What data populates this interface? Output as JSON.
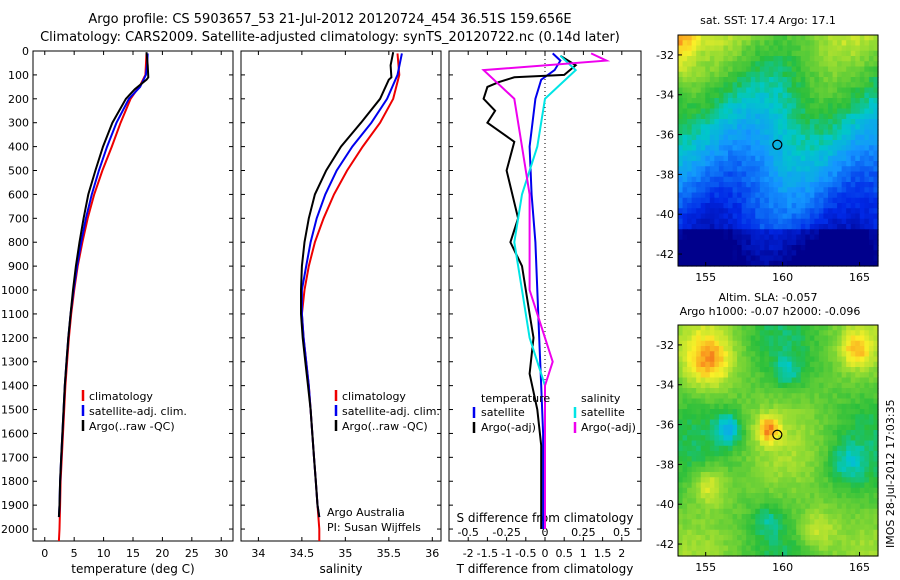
{
  "header": {
    "line1": "Argo profile: CS 5903657_53 21-Jul-2012 20120724_454 36.51S 159.656E",
    "line2": "Climatology: CARS2009. Satellite-adjusted climatology: synTS_20120722.nc (0.14d later)"
  },
  "side_label": "IMOS 28-Jul-2012 17:03:35",
  "colors": {
    "climatology": "#ee0000",
    "satellite": "#0000ee",
    "argo": "#000000",
    "sat_salinity": "#00e5e5",
    "argo_salinity": "#ee00ee",
    "marker": "#000000"
  },
  "chart_data": [
    {
      "type": "line",
      "panel": "temperature",
      "xlabel": "temperature (deg C)",
      "x_ticks": [
        "0",
        "5",
        "10",
        "15",
        "20",
        "25",
        "30"
      ],
      "xlim": [
        -2,
        32
      ],
      "y_ticks": [
        "0",
        "100",
        "200",
        "300",
        "400",
        "500",
        "600",
        "700",
        "800",
        "900",
        "1000",
        "1100",
        "1200",
        "1300",
        "1400",
        "1500",
        "1600",
        "1700",
        "1800",
        "1900",
        "2000"
      ],
      "ylim": [
        0,
        2050
      ],
      "y_reversed": true,
      "legend": [
        "climatology",
        "satellite-adj. clim.",
        "Argo(..raw -QC)"
      ],
      "series": [
        {
          "name": "climatology",
          "color": "#ee0000",
          "points": [
            [
              17.3,
              10
            ],
            [
              17.2,
              60
            ],
            [
              17.1,
              100
            ],
            [
              16.3,
              140
            ],
            [
              14.6,
              200
            ],
            [
              12.9,
              300
            ],
            [
              11.4,
              400
            ],
            [
              9.8,
              500
            ],
            [
              8.4,
              600
            ],
            [
              7.3,
              700
            ],
            [
              6.4,
              800
            ],
            [
              5.6,
              900
            ],
            [
              5.0,
              1000
            ],
            [
              4.5,
              1100
            ],
            [
              4.1,
              1200
            ],
            [
              3.8,
              1300
            ],
            [
              3.5,
              1400
            ],
            [
              3.3,
              1500
            ],
            [
              3.1,
              1600
            ],
            [
              2.9,
              1700
            ],
            [
              2.7,
              1800
            ],
            [
              2.6,
              1900
            ],
            [
              2.5,
              2000
            ],
            [
              2.4,
              2050
            ]
          ]
        },
        {
          "name": "satellite-adj. clim.",
          "color": "#0000ee",
          "points": [
            [
              17.5,
              10
            ],
            [
              17.4,
              60
            ],
            [
              17.2,
              100
            ],
            [
              16.2,
              150
            ],
            [
              14.3,
              200
            ],
            [
              12.2,
              300
            ],
            [
              10.6,
              400
            ],
            [
              9.2,
              500
            ],
            [
              8.0,
              600
            ],
            [
              7.0,
              700
            ],
            [
              6.2,
              800
            ],
            [
              5.5,
              900
            ],
            [
              4.9,
              1000
            ],
            [
              4.4,
              1100
            ],
            [
              4.0,
              1200
            ],
            [
              3.7,
              1300
            ],
            [
              3.4,
              1400
            ],
            [
              3.2,
              1500
            ],
            [
              3.0,
              1600
            ],
            [
              2.8,
              1700
            ],
            [
              2.6,
              1800
            ],
            [
              2.5,
              1900
            ],
            [
              2.4,
              1950
            ]
          ]
        },
        {
          "name": "Argo(..raw -QC)",
          "color": "#000000",
          "points": [
            [
              17.3,
              5
            ],
            [
              17.5,
              60
            ],
            [
              17.6,
              110
            ],
            [
              17.3,
              120
            ],
            [
              15.3,
              160
            ],
            [
              13.8,
              200
            ],
            [
              11.5,
              300
            ],
            [
              9.9,
              400
            ],
            [
              8.6,
              500
            ],
            [
              7.4,
              600
            ],
            [
              6.6,
              700
            ],
            [
              5.9,
              800
            ],
            [
              5.3,
              900
            ],
            [
              4.8,
              1000
            ],
            [
              4.4,
              1100
            ],
            [
              4.0,
              1200
            ],
            [
              3.7,
              1300
            ],
            [
              3.4,
              1400
            ],
            [
              3.2,
              1500
            ],
            [
              3.0,
              1600
            ],
            [
              2.8,
              1700
            ],
            [
              2.6,
              1800
            ],
            [
              2.5,
              1900
            ],
            [
              2.4,
              1950
            ]
          ]
        }
      ]
    },
    {
      "type": "line",
      "panel": "salinity",
      "xlabel": "salinity",
      "x_ticks": [
        "34",
        "34.5",
        "35",
        "35.5",
        "36"
      ],
      "xlim": [
        33.8,
        36.1
      ],
      "ylim": [
        0,
        2050
      ],
      "y_reversed": true,
      "legend": [
        "climatology",
        "satellite-adj. clim.",
        "Argo(..raw -QC)"
      ],
      "annotation": [
        "Argo Australia",
        "PI: Susan Wijffels"
      ],
      "series": [
        {
          "name": "climatology",
          "color": "#ee0000",
          "points": [
            [
              35.6,
              10
            ],
            [
              35.62,
              100
            ],
            [
              35.55,
              200
            ],
            [
              35.4,
              300
            ],
            [
              35.2,
              400
            ],
            [
              35.02,
              500
            ],
            [
              34.87,
              600
            ],
            [
              34.75,
              700
            ],
            [
              34.65,
              800
            ],
            [
              34.58,
              900
            ],
            [
              34.53,
              1000
            ],
            [
              34.5,
              1100
            ],
            [
              34.52,
              1200
            ],
            [
              34.55,
              1300
            ],
            [
              34.58,
              1400
            ],
            [
              34.6,
              1500
            ],
            [
              34.62,
              1600
            ],
            [
              34.64,
              1700
            ],
            [
              34.66,
              1800
            ],
            [
              34.68,
              1900
            ],
            [
              34.7,
              2000
            ],
            [
              34.7,
              2050
            ]
          ]
        },
        {
          "name": "satellite-adj. clim.",
          "color": "#0000ee",
          "points": [
            [
              35.65,
              10
            ],
            [
              35.6,
              100
            ],
            [
              35.48,
              200
            ],
            [
              35.3,
              300
            ],
            [
              35.08,
              400
            ],
            [
              34.9,
              500
            ],
            [
              34.77,
              600
            ],
            [
              34.67,
              700
            ],
            [
              34.6,
              800
            ],
            [
              34.55,
              900
            ],
            [
              34.5,
              1000
            ],
            [
              34.5,
              1100
            ],
            [
              34.52,
              1200
            ],
            [
              34.55,
              1300
            ],
            [
              34.58,
              1400
            ],
            [
              34.6,
              1500
            ],
            [
              34.62,
              1600
            ],
            [
              34.64,
              1700
            ],
            [
              34.66,
              1800
            ],
            [
              34.68,
              1900
            ],
            [
              34.7,
              1950
            ]
          ]
        },
        {
          "name": "Argo(..raw -QC)",
          "color": "#000000",
          "points": [
            [
              35.55,
              5
            ],
            [
              35.52,
              60
            ],
            [
              35.53,
              110
            ],
            [
              35.5,
              120
            ],
            [
              35.4,
              200
            ],
            [
              35.18,
              300
            ],
            [
              34.95,
              400
            ],
            [
              34.78,
              500
            ],
            [
              34.65,
              600
            ],
            [
              34.58,
              700
            ],
            [
              34.53,
              800
            ],
            [
              34.5,
              900
            ],
            [
              34.49,
              1000
            ],
            [
              34.49,
              1100
            ],
            [
              34.51,
              1200
            ],
            [
              34.54,
              1300
            ],
            [
              34.57,
              1400
            ],
            [
              34.6,
              1500
            ],
            [
              34.62,
              1600
            ],
            [
              34.64,
              1700
            ],
            [
              34.66,
              1800
            ],
            [
              34.68,
              1900
            ],
            [
              34.7,
              1950
            ]
          ]
        }
      ]
    },
    {
      "type": "line",
      "panel": "difference",
      "xlabel": "T difference from climatology",
      "xlabel_top": "S difference from climatology",
      "x_ticks": [
        "-2",
        "-1.5",
        "-1",
        "-0.5",
        "0",
        "0.5",
        "1",
        "1.5",
        "2"
      ],
      "x_ticks_top": [
        "-0.5",
        "-0.25",
        "0",
        "0.25",
        "0.5"
      ],
      "xlim": [
        -2.5,
        2.5
      ],
      "ylim": [
        0,
        2050
      ],
      "y_reversed": true,
      "legend_temperature": [
        "temperature",
        "satellite",
        "Argo(-adj)"
      ],
      "legend_salinity": [
        "salinity",
        "satellite",
        "Argo(-adj)"
      ],
      "series": [
        {
          "name": "satellite",
          "group": "temperature",
          "color": "#0000ee",
          "points": [
            [
              0.2,
              10
            ],
            [
              0.4,
              40
            ],
            [
              0.25,
              80
            ],
            [
              -0.1,
              120
            ],
            [
              -0.25,
              200
            ],
            [
              -0.4,
              400
            ],
            [
              -0.35,
              600
            ],
            [
              -0.25,
              800
            ],
            [
              -0.2,
              1000
            ],
            [
              -0.15,
              1200
            ],
            [
              -0.1,
              1400
            ],
            [
              -0.05,
              1600
            ],
            [
              -0.05,
              1800
            ],
            [
              -0.05,
              2000
            ]
          ]
        },
        {
          "name": "Argo(-adj)",
          "group": "temperature",
          "color": "#000000",
          "points": [
            [
              0.4,
              20
            ],
            [
              0.8,
              60
            ],
            [
              0.5,
              100
            ],
            [
              -0.8,
              110
            ],
            [
              -1.2,
              130
            ],
            [
              -1.5,
              150
            ],
            [
              -1.6,
              200
            ],
            [
              -1.3,
              250
            ],
            [
              -1.5,
              300
            ],
            [
              -0.8,
              380
            ],
            [
              -1.0,
              500
            ],
            [
              -0.7,
              700
            ],
            [
              -0.9,
              800
            ],
            [
              -0.6,
              900
            ],
            [
              -0.5,
              1000
            ],
            [
              -0.4,
              1100
            ],
            [
              -0.3,
              1200
            ],
            [
              -0.4,
              1350
            ],
            [
              -0.2,
              1500
            ],
            [
              -0.1,
              1650
            ],
            [
              -0.1,
              1800
            ],
            [
              -0.1,
              2000
            ]
          ]
        },
        {
          "name": "satellite",
          "group": "salinity",
          "color": "#00e5e5",
          "points": [
            [
              0.1,
              20
            ],
            [
              0.2,
              80
            ],
            [
              0.0,
              200
            ],
            [
              -0.05,
              400
            ],
            [
              -0.15,
              600
            ],
            [
              -0.2,
              800
            ],
            [
              -0.15,
              1000
            ],
            [
              -0.1,
              1200
            ],
            [
              0.0,
              1400
            ],
            [
              0.0,
              1600
            ],
            [
              0.0,
              1800
            ],
            [
              0.0,
              2000
            ]
          ]
        },
        {
          "name": "Argo(-adj)",
          "group": "salinity",
          "color": "#ee00ee",
          "points": [
            [
              0.3,
              10
            ],
            [
              0.4,
              40
            ],
            [
              -0.4,
              80
            ],
            [
              -0.2,
              200
            ],
            [
              -0.15,
              400
            ],
            [
              -0.1,
              600
            ],
            [
              -0.1,
              800
            ],
            [
              -0.1,
              1000
            ],
            [
              0.0,
              1200
            ],
            [
              0.05,
              1300
            ],
            [
              0.0,
              1400
            ],
            [
              0.0,
              1600
            ],
            [
              0.0,
              1800
            ],
            [
              0.0,
              2000
            ]
          ]
        }
      ]
    },
    {
      "type": "heatmap",
      "panel": "map-sst",
      "title": "sat. SST: 17.4  Argo: 17.1",
      "x_ticks": [
        "155",
        "160",
        "165"
      ],
      "y_ticks": [
        "-32",
        "-34",
        "-36",
        "-38",
        "-40",
        "-42"
      ],
      "xlim": [
        153.2,
        166.2
      ],
      "ylim": [
        -42.6,
        -31.0
      ],
      "marker": [
        159.656,
        -36.51
      ]
    },
    {
      "type": "heatmap",
      "panel": "map-sla",
      "title_line1": "Altim. SLA: -0.057",
      "title_line2": "Argo h1000: -0.07  h2000: -0.096",
      "x_ticks": [
        "155",
        "160",
        "165"
      ],
      "y_ticks": [
        "-32",
        "-34",
        "-36",
        "-38",
        "-40",
        "-42"
      ],
      "xlim": [
        153.2,
        166.2
      ],
      "ylim": [
        -42.6,
        -31.0
      ],
      "marker": [
        159.656,
        -36.51
      ]
    }
  ]
}
